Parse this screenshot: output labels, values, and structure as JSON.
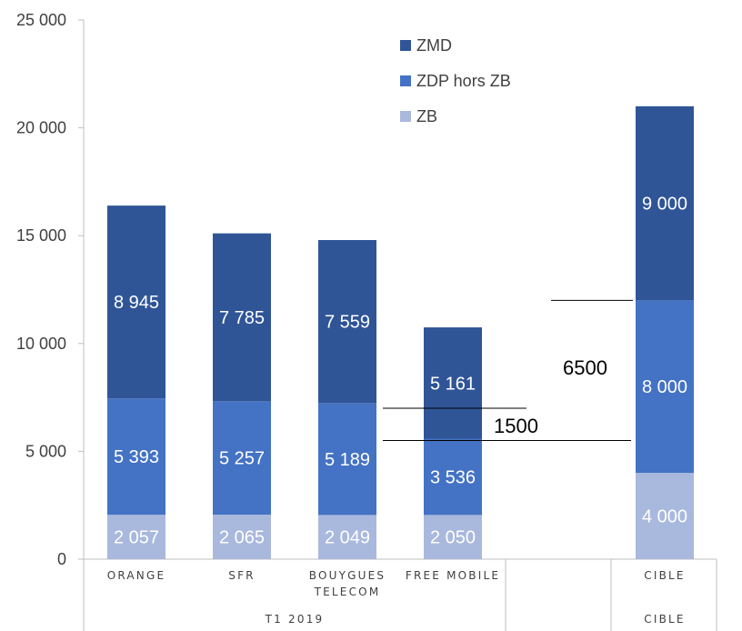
{
  "chart_data": {
    "type": "bar",
    "stacked": true,
    "title": "",
    "xlabel": "",
    "ylabel": "",
    "ylim": [
      0,
      25000
    ],
    "yticks": [
      0,
      5000,
      10000,
      15000,
      20000,
      25000
    ],
    "ytick_labels": [
      "0",
      "5 000",
      "10 000",
      "15 000",
      "20 000",
      "25 000"
    ],
    "categories": [
      "ORANGE",
      "SFR",
      "BOUYGUES TELECOM",
      "FREE MOBILE",
      "CIBLE"
    ],
    "category_label_lines": [
      [
        "ORANGE"
      ],
      [
        "SFR"
      ],
      [
        "BOUYGUES",
        "TELECOM"
      ],
      [
        "FREE MOBILE"
      ],
      [
        "CIBLE"
      ]
    ],
    "groups": [
      {
        "label": "T1 2019",
        "categories": [
          "ORANGE",
          "SFR",
          "BOUYGUES TELECOM",
          "FREE MOBILE"
        ]
      },
      {
        "label": "CIBLE",
        "categories": [
          "CIBLE"
        ]
      }
    ],
    "series": [
      {
        "name": "ZB",
        "color": "#A9B8DD",
        "values": [
          2057,
          2065,
          2049,
          2050,
          4000
        ],
        "labels": [
          "2 057",
          "2 065",
          "2 049",
          "2 050",
          "4 000"
        ]
      },
      {
        "name": "ZDP hors ZB",
        "color": "#4472C4",
        "values": [
          5393,
          5257,
          5189,
          3536,
          8000
        ],
        "labels": [
          "5 393",
          "5 257",
          "5 189",
          "3 536",
          "8 000"
        ]
      },
      {
        "name": "ZMD",
        "color": "#2F5597",
        "values": [
          8945,
          7785,
          7559,
          5161,
          9000
        ],
        "labels": [
          "8 945",
          "7 785",
          "7 559",
          "5 161",
          "9 000"
        ]
      }
    ],
    "legend": {
      "position": "top-center",
      "order": [
        "ZMD",
        "ZDP hors ZB",
        "ZB"
      ]
    },
    "annotations": [
      {
        "text": "6500",
        "from_value": 5500,
        "to_value": 12000
      },
      {
        "text": "1500",
        "from_value": 5500,
        "to_value": 7000
      }
    ],
    "grid": false
  }
}
